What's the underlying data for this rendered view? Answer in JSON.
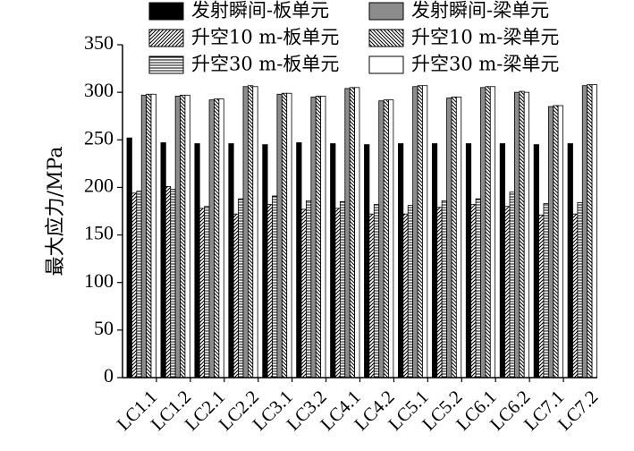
{
  "chart_data": {
    "type": "bar",
    "title": "",
    "xlabel": "",
    "ylabel": "最大应力/MPa",
    "ylim": [
      0,
      350
    ],
    "yticks": [
      0,
      50,
      100,
      150,
      200,
      250,
      300,
      350
    ],
    "grid": false,
    "legend_position": "top",
    "categories": [
      "LC1.1",
      "LC1.2",
      "LC2.1",
      "LC2.2",
      "LC3.1",
      "LC3.2",
      "LC4.1",
      "LC4.2",
      "LC5.1",
      "LC5.2",
      "LC6.1",
      "LC6.2",
      "LC7.1",
      "LC7.2"
    ],
    "series": [
      {
        "name": "发射瞬间-板单元",
        "pattern": "solid-black",
        "values": [
          252,
          247,
          246,
          246,
          245,
          247,
          246,
          245,
          246,
          246,
          246,
          246,
          245,
          246
        ]
      },
      {
        "name": "升空10 m-板单元",
        "pattern": "diagonal-forward",
        "values": [
          194,
          201,
          178,
          172,
          182,
          177,
          178,
          172,
          172,
          179,
          182,
          180,
          171,
          172
        ]
      },
      {
        "name": "升空30 m-板单元",
        "pattern": "horizontal-lines",
        "values": [
          196,
          198,
          180,
          188,
          191,
          186,
          185,
          182,
          181,
          186,
          188,
          195,
          183,
          184
        ]
      },
      {
        "name": "发射瞬间-梁单元",
        "pattern": "solid-gray",
        "values": [
          297,
          296,
          292,
          306,
          298,
          295,
          304,
          291,
          306,
          294,
          305,
          300,
          285,
          307
        ]
      },
      {
        "name": "升空10 m-梁单元",
        "pattern": "diagonal-backward",
        "values": [
          298,
          297,
          293,
          307,
          299,
          296,
          305,
          292,
          307,
          295,
          306,
          301,
          286,
          308
        ]
      },
      {
        "name": "升空30 m-梁单元",
        "pattern": "white",
        "values": [
          298,
          297,
          293,
          306,
          299,
          296,
          305,
          292,
          307,
          295,
          306,
          300,
          286,
          308
        ]
      }
    ]
  },
  "legend": {
    "items": [
      {
        "label": "发射瞬间-板单元",
        "pattern": "solid-black"
      },
      {
        "label": "发射瞬间-梁单元",
        "pattern": "solid-gray"
      },
      {
        "label": "升空10 m-板单元",
        "pattern": "diagonal-forward"
      },
      {
        "label": "升空10 m-梁单元",
        "pattern": "diagonal-backward"
      },
      {
        "label": "升空30 m-板单元",
        "pattern": "horizontal-lines"
      },
      {
        "label": "升空30 m-梁单元",
        "pattern": "white"
      }
    ]
  },
  "colors": {
    "black": "#000000",
    "gray": "#8c8c8c",
    "white": "#ffffff"
  }
}
